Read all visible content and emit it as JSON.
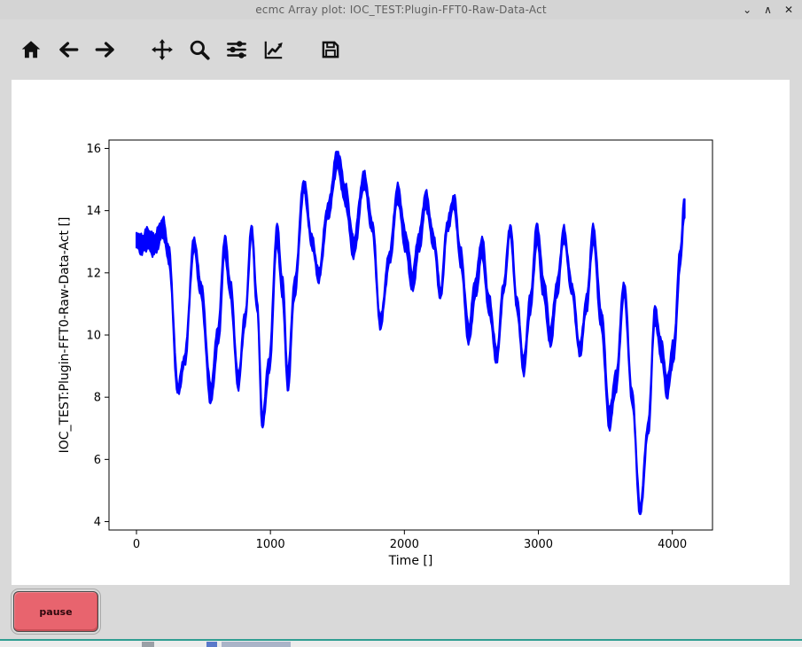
{
  "window": {
    "title": "ecmc Array plot: IOC_TEST:Plugin-FFT0-Raw-Data-Act",
    "controls": {
      "shade": "⌄",
      "maximize": "∧",
      "close": "✕"
    }
  },
  "toolbar": {
    "icons": [
      "home-icon",
      "back-icon",
      "forward-icon",
      "pan-icon",
      "zoom-icon",
      "configure-subplots-icon",
      "edit-parameters-icon",
      "save-icon"
    ]
  },
  "chart_data": {
    "type": "line",
    "title": "",
    "xlabel": "Time []",
    "ylabel": "IOC_TEST:Plugin-FFT0-Raw-Data-Act []",
    "xlim": [
      -205,
      4300
    ],
    "ylim": [
      3.73,
      16.27
    ],
    "x_ticks": [
      0,
      1000,
      2000,
      3000,
      4000
    ],
    "y_ticks": [
      4,
      6,
      8,
      10,
      12,
      14,
      16
    ],
    "grid": false,
    "line_color": "#0000ff",
    "band_halfwidth": 0.24,
    "series": [
      {
        "name": "IOC_TEST:Plugin-FFT0-Raw-Data-Act",
        "points": [
          [
            0,
            13.05
          ],
          [
            40,
            12.9
          ],
          [
            80,
            13.1
          ],
          [
            130,
            12.9
          ],
          [
            200,
            13.45
          ],
          [
            240,
            12.6
          ],
          [
            310,
            8.25
          ],
          [
            360,
            9.2
          ],
          [
            430,
            12.95
          ],
          [
            480,
            11.5
          ],
          [
            555,
            8.1
          ],
          [
            610,
            10.0
          ],
          [
            660,
            12.9
          ],
          [
            700,
            11.5
          ],
          [
            760,
            8.5
          ],
          [
            810,
            10.5
          ],
          [
            860,
            13.4
          ],
          [
            900,
            11.0
          ],
          [
            940,
            7.2
          ],
          [
            990,
            9.0
          ],
          [
            1050,
            13.25
          ],
          [
            1090,
            11.5
          ],
          [
            1130,
            8.5
          ],
          [
            1180,
            11.5
          ],
          [
            1250,
            14.8
          ],
          [
            1310,
            13.0
          ],
          [
            1360,
            11.9
          ],
          [
            1430,
            14.0
          ],
          [
            1500,
            15.65
          ],
          [
            1560,
            14.5
          ],
          [
            1620,
            12.8
          ],
          [
            1700,
            15.0
          ],
          [
            1760,
            13.5
          ],
          [
            1820,
            10.4
          ],
          [
            1890,
            12.5
          ],
          [
            1950,
            14.55
          ],
          [
            2010,
            13.0
          ],
          [
            2060,
            11.7
          ],
          [
            2110,
            13.0
          ],
          [
            2160,
            14.35
          ],
          [
            2220,
            13.0
          ],
          [
            2270,
            11.3
          ],
          [
            2320,
            13.5
          ],
          [
            2370,
            14.3
          ],
          [
            2420,
            12.5
          ],
          [
            2480,
            10.0
          ],
          [
            2530,
            11.5
          ],
          [
            2580,
            12.85
          ],
          [
            2630,
            11.0
          ],
          [
            2690,
            9.3
          ],
          [
            2740,
            11.5
          ],
          [
            2790,
            13.4
          ],
          [
            2840,
            11.0
          ],
          [
            2890,
            9.0
          ],
          [
            2940,
            11.0
          ],
          [
            2990,
            13.3
          ],
          [
            3040,
            11.5
          ],
          [
            3090,
            9.9
          ],
          [
            3140,
            11.5
          ],
          [
            3190,
            13.25
          ],
          [
            3250,
            11.5
          ],
          [
            3310,
            9.5
          ],
          [
            3360,
            11.0
          ],
          [
            3410,
            13.25
          ],
          [
            3470,
            10.5
          ],
          [
            3530,
            7.3
          ],
          [
            3580,
            8.5
          ],
          [
            3640,
            11.5
          ],
          [
            3700,
            8.0
          ],
          [
            3760,
            4.35
          ],
          [
            3820,
            7.0
          ],
          [
            3870,
            10.65
          ],
          [
            3920,
            9.5
          ],
          [
            3960,
            8.3
          ],
          [
            4010,
            9.5
          ],
          [
            4060,
            12.5
          ],
          [
            4090,
            14.15
          ],
          [
            4095,
            13.9
          ]
        ]
      }
    ]
  },
  "footer": {
    "pause_label": "pause"
  }
}
